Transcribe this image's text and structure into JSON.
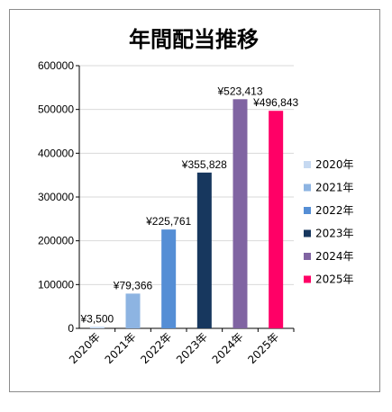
{
  "chart_data": {
    "type": "bar",
    "title": "年間配当推移",
    "categories": [
      "2020年",
      "2021年",
      "2022年",
      "2023年",
      "2024年",
      "2025年"
    ],
    "values": [
      3500,
      79366,
      225761,
      355828,
      523413,
      496843
    ],
    "data_labels": [
      "¥3,500",
      "¥79,366",
      "¥225,761",
      "¥355,828",
      "¥523,413",
      "¥496,843"
    ],
    "colors": [
      "#c6d9f1",
      "#8db4e2",
      "#558ed5",
      "#17375e",
      "#8064a2",
      "#ff0066"
    ],
    "ylim": [
      0,
      600000
    ],
    "yticks": [
      0,
      100000,
      200000,
      300000,
      400000,
      500000,
      600000
    ],
    "ytick_labels": [
      "0",
      "100000",
      "200000",
      "300000",
      "400000",
      "500000",
      "600000"
    ],
    "grid": true,
    "legend": "right",
    "xlabel": "",
    "ylabel": ""
  }
}
